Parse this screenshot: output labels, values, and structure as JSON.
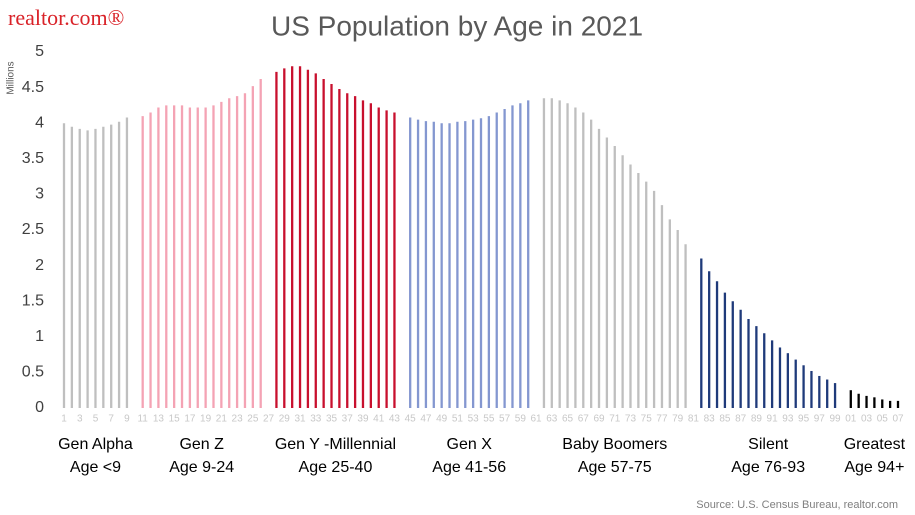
{
  "logo": "realtor.com®",
  "chart_data": {
    "type": "bar",
    "title": "US Population by Age in 2021",
    "ylabel": "Millions",
    "source": "Source: U.S. Census Bureau, realtor.com",
    "categories": [
      "1",
      null,
      "3",
      null,
      "5",
      null,
      "7",
      null,
      "9",
      null,
      "11",
      null,
      "13",
      null,
      "15",
      null,
      "17",
      null,
      "19",
      null,
      "21",
      null,
      "23",
      null,
      "25",
      null,
      "27",
      null,
      "29",
      null,
      "31",
      null,
      "33",
      null,
      "35",
      null,
      "37",
      null,
      "39",
      null,
      "41",
      null,
      "43",
      null,
      "45",
      null,
      "47",
      null,
      "49",
      null,
      "51",
      null,
      "53",
      null,
      "55",
      null,
      "57",
      null,
      "59",
      null,
      "61",
      null,
      "63",
      null,
      "65",
      null,
      "67",
      null,
      "69",
      null,
      "71",
      null,
      "73",
      null,
      "75",
      null,
      "77",
      null,
      "79",
      null,
      "81",
      null,
      "83",
      null,
      "85",
      null,
      "87",
      null,
      "89",
      null,
      "91",
      null,
      "93",
      null,
      "95",
      null,
      "97",
      null,
      "99",
      null,
      "01",
      null,
      "03",
      null,
      "05",
      null,
      "07"
    ],
    "values": [
      4.0,
      3.95,
      3.92,
      3.9,
      3.92,
      3.95,
      3.98,
      4.02,
      4.08,
      null,
      4.1,
      4.15,
      4.22,
      4.25,
      4.25,
      4.25,
      4.22,
      4.22,
      4.22,
      4.25,
      4.3,
      4.35,
      4.38,
      4.42,
      4.52,
      4.62,
      null,
      4.72,
      4.77,
      4.8,
      4.8,
      4.75,
      4.7,
      4.62,
      4.55,
      4.48,
      4.42,
      4.38,
      4.32,
      4.28,
      4.22,
      4.18,
      4.15,
      null,
      4.08,
      4.05,
      4.03,
      4.02,
      4.0,
      4.0,
      4.02,
      4.03,
      4.05,
      4.07,
      4.1,
      4.15,
      4.2,
      4.25,
      4.28,
      4.32,
      null,
      4.35,
      4.35,
      4.32,
      4.28,
      4.22,
      4.15,
      4.05,
      3.92,
      3.8,
      3.68,
      3.55,
      3.42,
      3.3,
      3.18,
      3.05,
      2.85,
      2.65,
      2.5,
      2.3,
      null,
      2.1,
      1.92,
      1.78,
      1.62,
      1.5,
      1.38,
      1.25,
      1.15,
      1.05,
      0.95,
      0.85,
      0.77,
      0.68,
      0.6,
      0.52,
      0.45,
      0.4,
      0.35,
      null,
      0.25,
      0.2,
      0.17,
      0.15,
      0.12,
      0.1,
      0.1
    ],
    "groups": [
      {
        "name": "Gen Alpha",
        "age": "Age <9",
        "color": "#bfbfbf"
      },
      {
        "name": "Gen Z",
        "age": "Age 9-24",
        "color": "#f4a3b4"
      },
      {
        "name": "Gen Y -Millennial",
        "age": "Age 25-40",
        "color": "#c8102e"
      },
      {
        "name": "Gen X",
        "age": "Age 41-56",
        "color": "#8497d0"
      },
      {
        "name": "Baby Boomers",
        "age": "Age 57-75",
        "color": "#bfbfbf"
      },
      {
        "name": "Silent",
        "age": "Age 76-93",
        "color": "#1f3a7a"
      },
      {
        "name": "Greatest",
        "age": "Age 94+",
        "color": "#000000"
      }
    ],
    "ylim": [
      0,
      5
    ],
    "yticks": [
      0,
      0.5,
      1,
      1.5,
      2,
      2.5,
      3,
      3.5,
      4,
      4.5,
      5
    ]
  }
}
